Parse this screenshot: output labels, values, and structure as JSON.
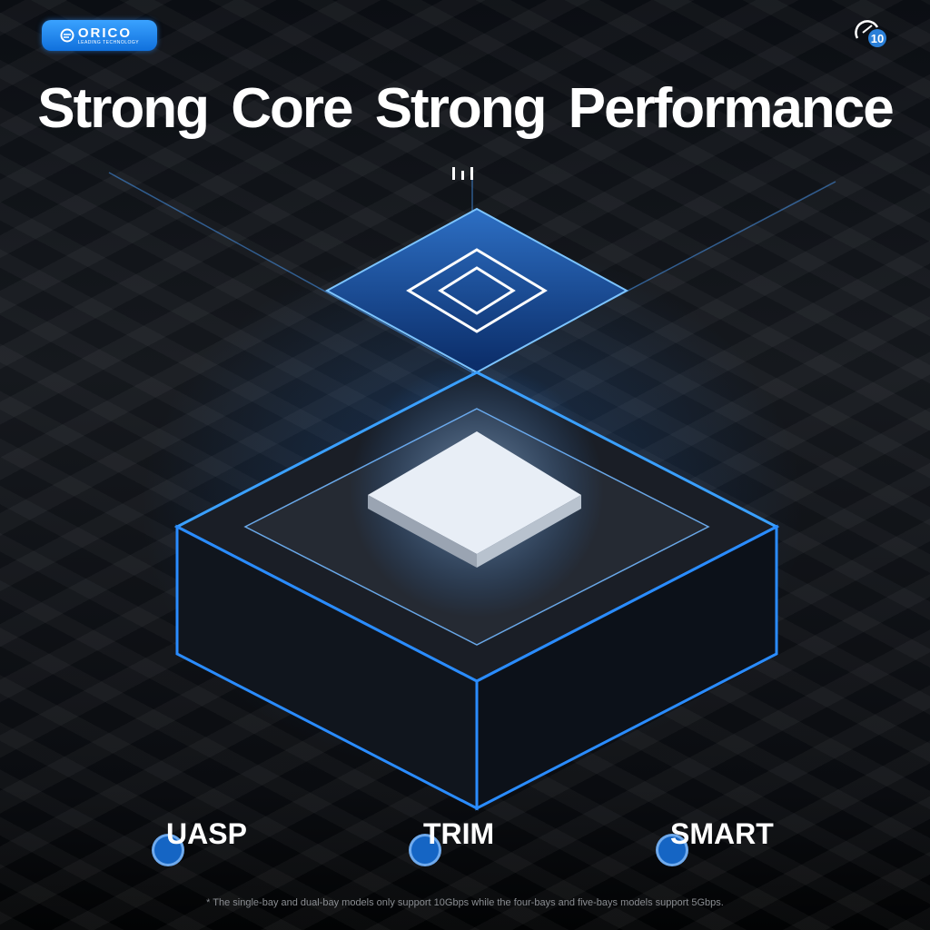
{
  "brand": {
    "name": "ORICO",
    "tagline": "LEADING TECHNOLOGY",
    "color": "#1a84ec"
  },
  "badge": {
    "number": "10",
    "icon": "speedometer-icon"
  },
  "title": "Strong Core  Strong Performance",
  "features": [
    {
      "label": "UASP"
    },
    {
      "label": "TRIM"
    },
    {
      "label": "SMART"
    }
  ],
  "footnote": "* The single-bay and dual-bay models only support 10Gbps while the four-bays and five-bays models support 5Gbps.",
  "accent": "#2a8cff"
}
